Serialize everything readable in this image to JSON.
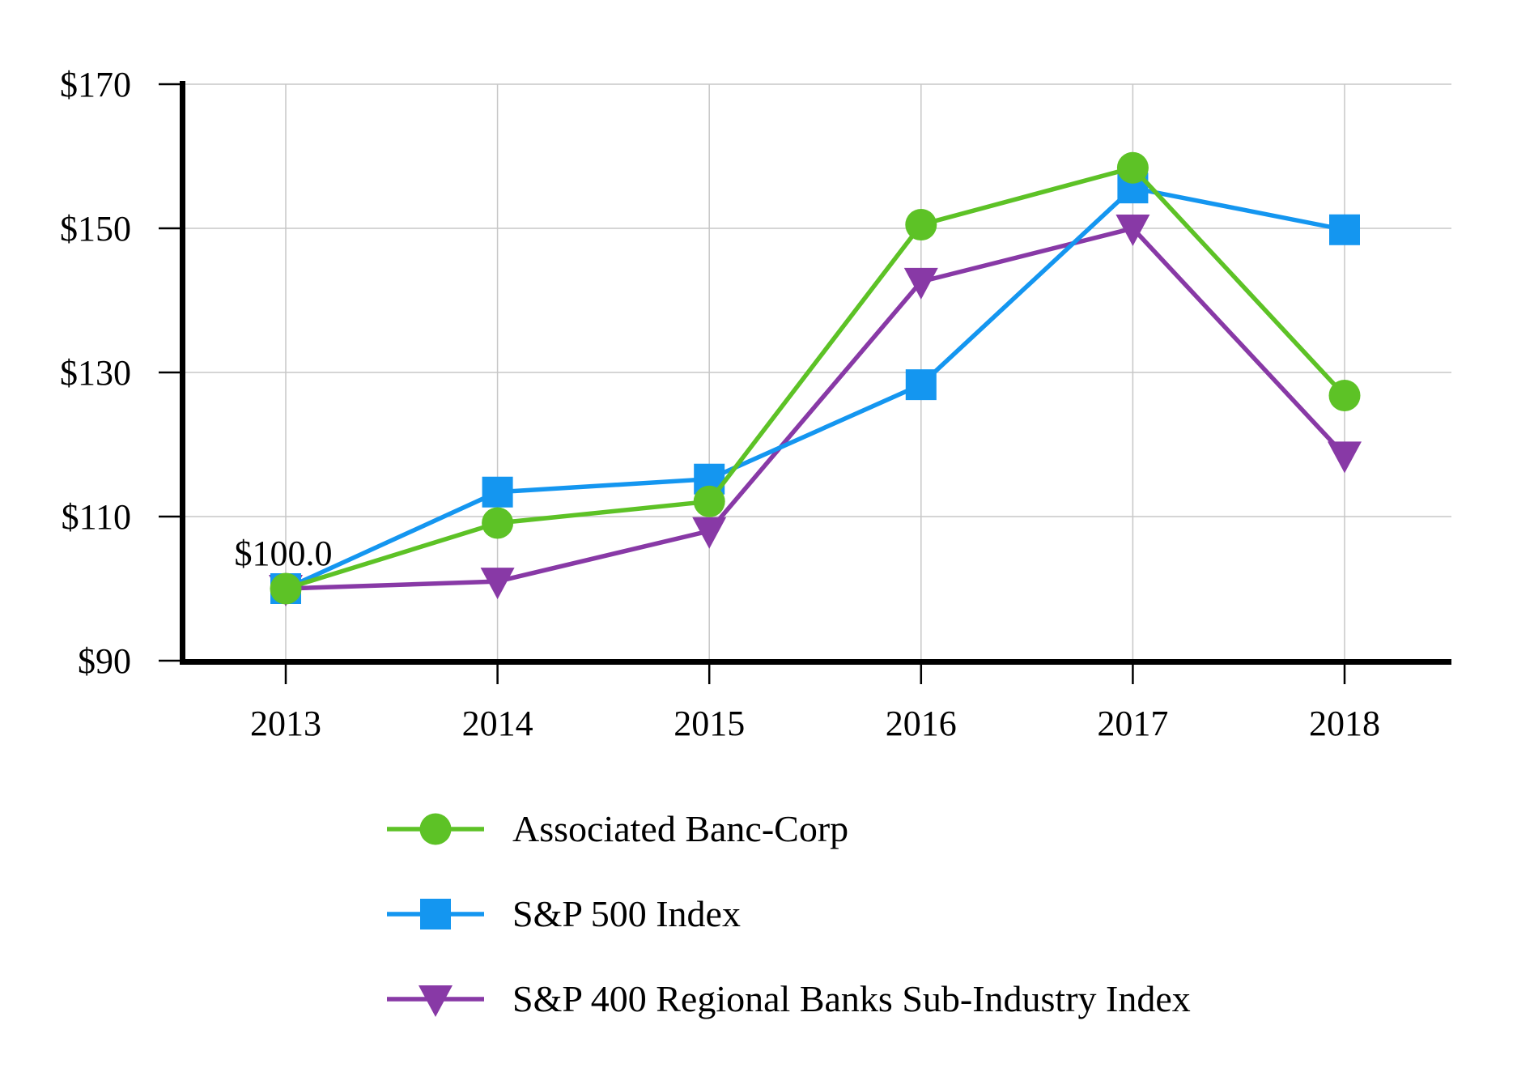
{
  "chart_data": {
    "type": "line",
    "title": "",
    "xlabel": "",
    "ylabel": "",
    "x": [
      2013,
      2014,
      2015,
      2016,
      2017,
      2018
    ],
    "x_tick_labels": [
      "2013",
      "2014",
      "2015",
      "2016",
      "2017",
      "2018"
    ],
    "y_ticks": [
      90,
      110,
      130,
      150,
      170
    ],
    "y_tick_labels": [
      "$90",
      "$110",
      "$130",
      "$150",
      "$170"
    ],
    "ylim": [
      90,
      170
    ],
    "grid": true,
    "legend_position": "bottom-left",
    "series": [
      {
        "name": "Associated Banc-Corp",
        "marker": "circle",
        "color": "#5DC226",
        "values": [
          100.0,
          109.1,
          112.1,
          150.5,
          158.4,
          126.8
        ]
      },
      {
        "name": "S&P 500 Index",
        "marker": "square",
        "color": "#1496F0",
        "values": [
          100.0,
          113.4,
          115.2,
          128.3,
          155.6,
          149.8
        ]
      },
      {
        "name": "S&P 400 Regional Banks Sub-Industry Index",
        "marker": "triangle-down",
        "color": "#8839A6",
        "values": [
          100.0,
          101.0,
          108.0,
          142.6,
          150.0,
          118.5
        ]
      }
    ],
    "annotation": {
      "text": "$100.0",
      "x": 2013,
      "y": 100
    },
    "colors": {
      "grid": "#C7C7C7",
      "axis": "#000000",
      "text": "#000000",
      "background": "#FFFFFF"
    }
  }
}
